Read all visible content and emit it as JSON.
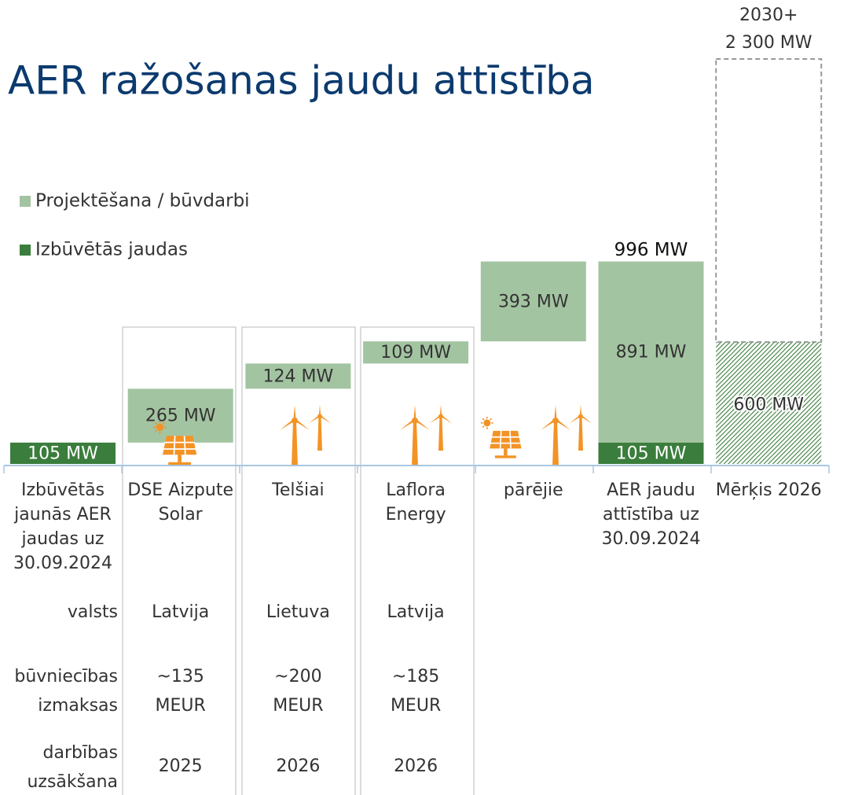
{
  "chart_data": {
    "type": "waterfall",
    "title": "AER ražošanas jaudu attīstība",
    "categories": [
      [
        "Izbūvētās",
        "jaunās AER",
        "jaudas uz",
        "30.09.2024"
      ],
      [
        "DSE Aizpute",
        "Solar"
      ],
      [
        "Telšiai"
      ],
      [
        "Laflora",
        "Energy"
      ],
      [
        "pārējie"
      ],
      [
        "AER jaudu",
        "attīstība uz",
        "30.09.2024"
      ],
      [
        "Mērķis 2026"
      ]
    ],
    "series": [
      {
        "name": "Projektēšana / būvdarbi",
        "color": "#a3c4a1",
        "values": [
          null,
          265,
          124,
          109,
          393,
          891,
          null
        ],
        "value_labels": [
          null,
          "265 MW",
          "124 MW",
          "109 MW",
          "393 MW",
          "891 MW",
          null
        ]
      },
      {
        "name": "Izbūvētās jaudas",
        "color": "#3a7d3c",
        "values": [
          105,
          null,
          null,
          null,
          null,
          105,
          null
        ],
        "value_labels": [
          "105 MW",
          null,
          null,
          null,
          null,
          "105 MW",
          null
        ]
      }
    ],
    "total": {
      "value": 996,
      "label": "996 MW"
    },
    "target": {
      "value": 600,
      "label": "600 MW",
      "color": "#3a7d3c"
    },
    "target_2030": {
      "title": "2030+",
      "value": 2300,
      "label": "2 300 MW"
    }
  },
  "table": {
    "rows": [
      {
        "label": [
          "valsts"
        ],
        "cells": [
          [
            "Latvija"
          ],
          [
            "Lietuva"
          ],
          [
            "Latvija"
          ]
        ]
      },
      {
        "label": [
          "būvniecības",
          "izmaksas"
        ],
        "cells": [
          [
            "~135",
            "MEUR"
          ],
          [
            "~200",
            "MEUR"
          ],
          [
            "~185",
            "MEUR"
          ]
        ]
      },
      {
        "label": [
          "darbības",
          "uzsākšana"
        ],
        "cells": [
          [
            "2025"
          ],
          [
            "2026"
          ],
          [
            "2026"
          ]
        ]
      }
    ]
  }
}
